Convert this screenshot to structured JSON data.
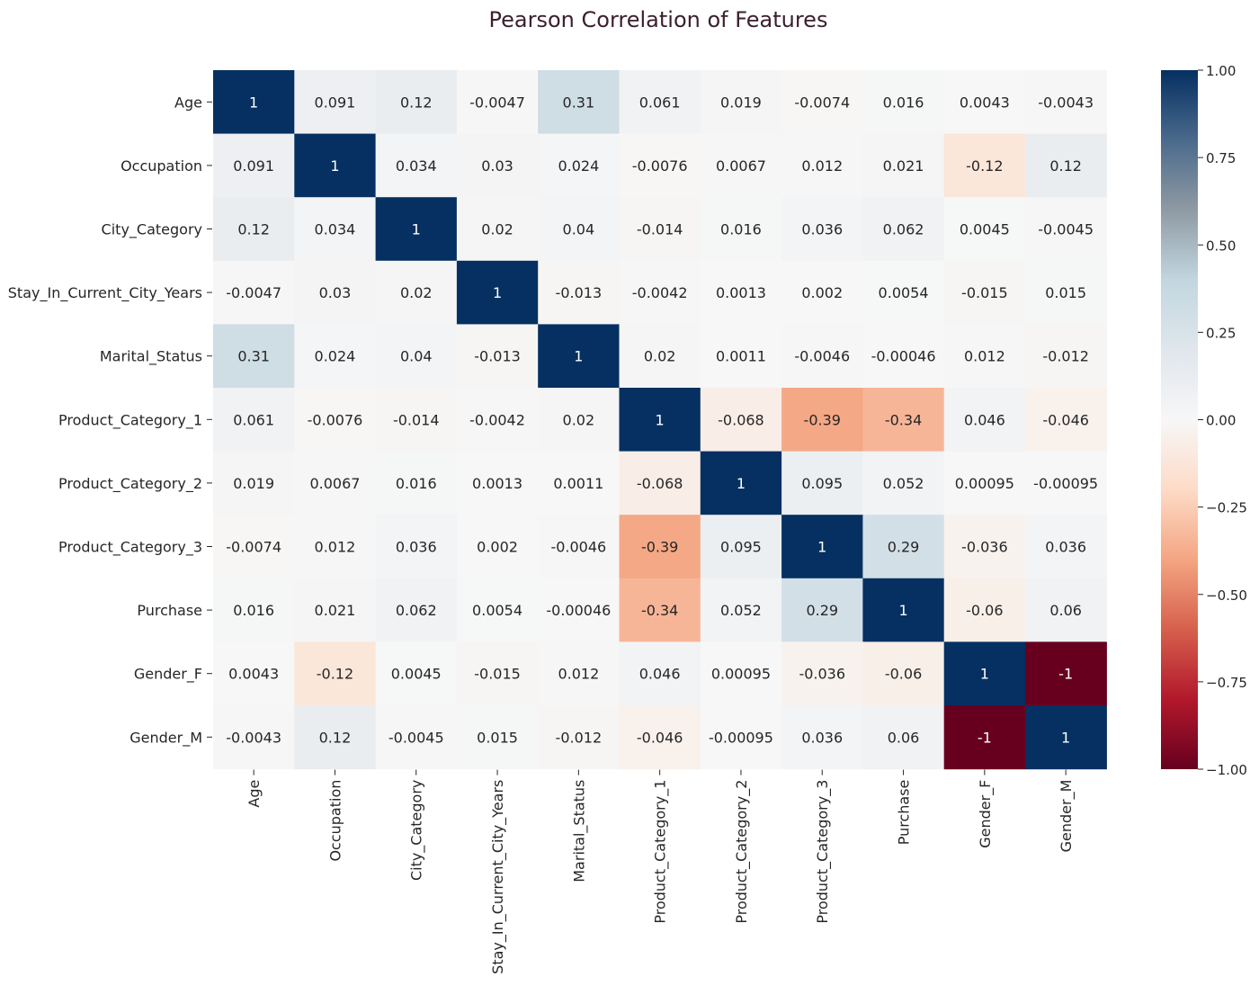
{
  "chart_data": {
    "type": "heatmap",
    "title": "Pearson Correlation of Features",
    "rows": [
      "Age",
      "Occupation",
      "City_Category",
      "Stay_In_Current_City_Years",
      "Marital_Status",
      "Product_Category_1",
      "Product_Category_2",
      "Product_Category_3",
      "Purchase",
      "Gender_F",
      "Gender_M"
    ],
    "columns": [
      "Age",
      "Occupation",
      "City_Category",
      "Stay_In_Current_City_Years",
      "Marital_Status",
      "Product_Category_1",
      "Product_Category_2",
      "Product_Category_3",
      "Purchase",
      "Gender_F",
      "Gender_M"
    ],
    "values": [
      [
        1,
        0.091,
        0.12,
        -0.0047,
        0.31,
        0.061,
        0.019,
        -0.0074,
        0.016,
        0.0043,
        -0.0043
      ],
      [
        0.091,
        1,
        0.034,
        0.03,
        0.024,
        -0.0076,
        0.0067,
        0.012,
        0.021,
        -0.12,
        0.12
      ],
      [
        0.12,
        0.034,
        1,
        0.02,
        0.04,
        -0.014,
        0.016,
        0.036,
        0.062,
        0.0045,
        -0.0045
      ],
      [
        -0.0047,
        0.03,
        0.02,
        1,
        -0.013,
        -0.0042,
        0.0013,
        0.002,
        0.0054,
        -0.015,
        0.015
      ],
      [
        0.31,
        0.024,
        0.04,
        -0.013,
        1,
        0.02,
        0.0011,
        -0.0046,
        -0.00046,
        0.012,
        -0.012
      ],
      [
        0.061,
        -0.0076,
        -0.014,
        -0.0042,
        0.02,
        1,
        -0.068,
        -0.39,
        -0.34,
        0.046,
        -0.046
      ],
      [
        0.019,
        0.0067,
        0.016,
        0.0013,
        0.0011,
        -0.068,
        1,
        0.095,
        0.052,
        0.00095,
        -0.00095
      ],
      [
        -0.0074,
        0.012,
        0.036,
        0.002,
        -0.0046,
        -0.39,
        0.095,
        1,
        0.29,
        -0.036,
        0.036
      ],
      [
        0.016,
        0.021,
        0.062,
        0.0054,
        -0.00046,
        -0.34,
        0.052,
        0.29,
        1,
        -0.06,
        0.06
      ],
      [
        0.0043,
        -0.12,
        0.0045,
        -0.015,
        0.012,
        0.046,
        0.00095,
        -0.036,
        -0.06,
        1,
        -1
      ],
      [
        -0.0043,
        0.12,
        -0.0045,
        0.015,
        -0.012,
        -0.046,
        -0.00095,
        0.036,
        0.06,
        -1,
        1
      ]
    ],
    "value_labels": [
      [
        "1",
        "0.091",
        "0.12",
        "-0.0047",
        "0.31",
        "0.061",
        "0.019",
        "-0.0074",
        "0.016",
        "0.0043",
        "-0.0043"
      ],
      [
        "0.091",
        "1",
        "0.034",
        "0.03",
        "0.024",
        "-0.0076",
        "0.0067",
        "0.012",
        "0.021",
        "-0.12",
        "0.12"
      ],
      [
        "0.12",
        "0.034",
        "1",
        "0.02",
        "0.04",
        "-0.014",
        "0.016",
        "0.036",
        "0.062",
        "0.0045",
        "-0.0045"
      ],
      [
        "-0.0047",
        "0.03",
        "0.02",
        "1",
        "-0.013",
        "-0.0042",
        "0.0013",
        "0.002",
        "0.0054",
        "-0.015",
        "0.015"
      ],
      [
        "0.31",
        "0.024",
        "0.04",
        "-0.013",
        "1",
        "0.02",
        "0.0011",
        "-0.0046",
        "-0.00046",
        "0.012",
        "-0.012"
      ],
      [
        "0.061",
        "-0.0076",
        "-0.014",
        "-0.0042",
        "0.02",
        "1",
        "-0.068",
        "-0.39",
        "-0.34",
        "0.046",
        "-0.046"
      ],
      [
        "0.019",
        "0.0067",
        "0.016",
        "0.0013",
        "0.0011",
        "-0.068",
        "1",
        "0.095",
        "0.052",
        "0.00095",
        "-0.00095"
      ],
      [
        "-0.0074",
        "0.012",
        "0.036",
        "0.002",
        "-0.0046",
        "-0.39",
        "0.095",
        "1",
        "0.29",
        "-0.036",
        "0.036"
      ],
      [
        "0.016",
        "0.021",
        "0.062",
        "0.0054",
        "-0.00046",
        "-0.34",
        "0.052",
        "0.29",
        "1",
        "-0.06",
        "0.06"
      ],
      [
        "0.0043",
        "-0.12",
        "0.0045",
        "-0.015",
        "0.012",
        "0.046",
        "0.00095",
        "-0.036",
        "-0.06",
        "1",
        "-1"
      ],
      [
        "-0.0043",
        "0.12",
        "-0.0045",
        "0.015",
        "-0.012",
        "-0.046",
        "-0.00095",
        "0.036",
        "0.06",
        "-1",
        "1"
      ]
    ],
    "colorbar": {
      "vmin": -1.0,
      "vmax": 1.0,
      "ticks": [
        1.0,
        0.75,
        0.5,
        0.25,
        0.0,
        -0.25,
        -0.5,
        -0.75,
        -1.0
      ],
      "tick_labels": [
        "1.00",
        "0.75",
        "0.50",
        "0.25",
        "0.00",
        "−0.25",
        "−0.50",
        "−0.75",
        "−1.00"
      ],
      "colormap": "RdBu",
      "colors": [
        "#67001f",
        "#b2182b",
        "#d6604d",
        "#f4a582",
        "#fddbc7",
        "#f7f7f7",
        "#e0e6ec",
        "#c2d6e0",
        "#8f9aa3",
        "#4a6a8c",
        "#053061"
      ]
    },
    "grid": false,
    "legend": "colorbar-right"
  }
}
